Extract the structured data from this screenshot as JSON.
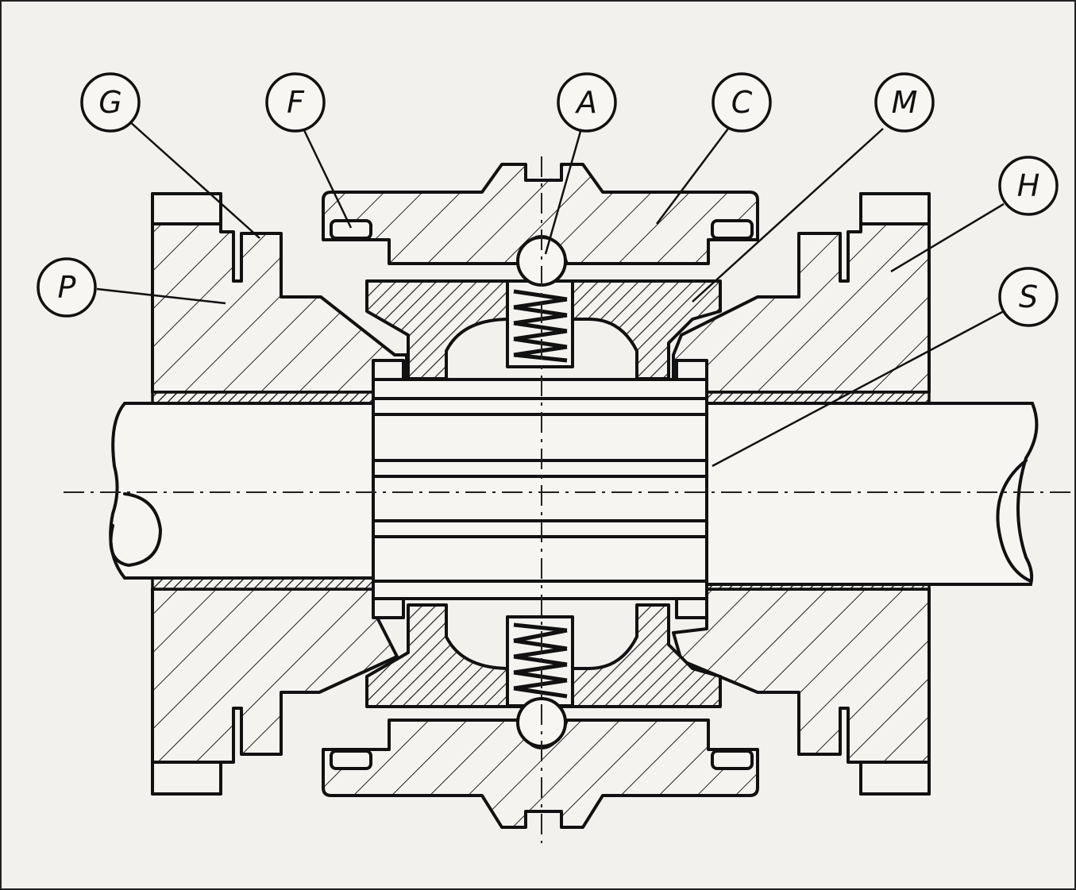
{
  "labels": {
    "G": "G",
    "F": "F",
    "A": "A",
    "C": "C",
    "M": "M",
    "H": "H",
    "P": "P",
    "S": "S"
  },
  "colors": {
    "background": "#f2f1ee",
    "ink": "#111111"
  }
}
